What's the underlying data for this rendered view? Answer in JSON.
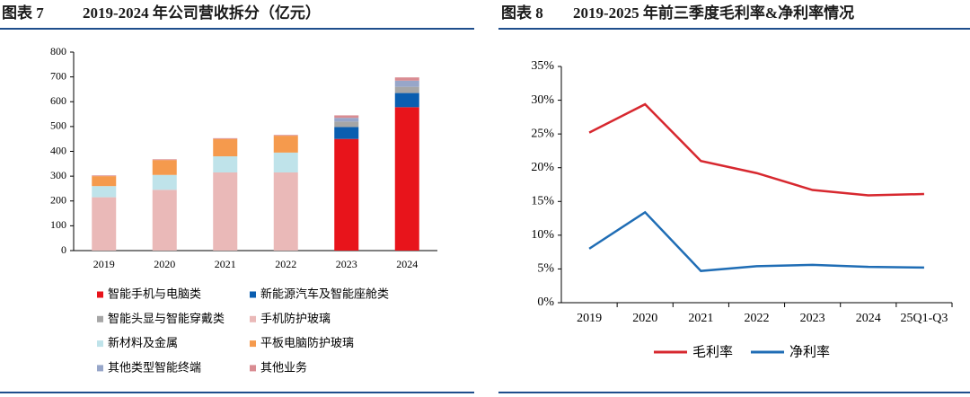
{
  "chart_data": [
    {
      "type": "bar",
      "stacked": true,
      "figure_label": "图表 7",
      "title": "2019-2024 年公司营收拆分（亿元）",
      "categories": [
        "2019",
        "2020",
        "2021",
        "2022",
        "2023",
        "2024"
      ],
      "ylim": [
        0,
        800
      ],
      "yticks": [
        0,
        100,
        200,
        300,
        400,
        500,
        600,
        700,
        800
      ],
      "series": [
        {
          "name": "智能手机与电脑类",
          "color": "#e8141b",
          "values": [
            0,
            0,
            0,
            0,
            450,
            578
          ]
        },
        {
          "name": "新能源汽车及智能座舱类",
          "color": "#0a5eb0",
          "values": [
            0,
            0,
            0,
            0,
            48,
            57
          ]
        },
        {
          "name": "智能头显与智能穿戴类",
          "color": "#a6a6a6",
          "values": [
            0,
            0,
            0,
            0,
            22,
            25
          ]
        },
        {
          "name": "手机防护玻璃",
          "color": "#eab9b8",
          "values": [
            215,
            245,
            315,
            315,
            0,
            0
          ]
        },
        {
          "name": "新材料及金属",
          "color": "#bfe3ea",
          "values": [
            45,
            60,
            65,
            80,
            0,
            0
          ]
        },
        {
          "name": "平板电脑防护玻璃",
          "color": "#f59a4d",
          "values": [
            40,
            60,
            70,
            68,
            0,
            0
          ]
        },
        {
          "name": "其他类型智能终端",
          "color": "#97a6c9",
          "values": [
            0,
            0,
            0,
            0,
            15,
            25
          ]
        },
        {
          "name": "其他业务",
          "color": "#d98c92",
          "values": [
            3,
            3,
            3,
            3,
            10,
            13
          ]
        }
      ]
    },
    {
      "type": "line",
      "figure_label": "图表 8",
      "title": "2019-2025 年前三季度毛利率&净利率情况",
      "categories": [
        "2019",
        "2020",
        "2021",
        "2022",
        "2023",
        "2024",
        "25Q1-Q3"
      ],
      "ylim": [
        0,
        35
      ],
      "yticks": [
        {
          "value": 0,
          "label": "0%"
        },
        {
          "value": 5,
          "label": "5%"
        },
        {
          "value": 10,
          "label": "10%"
        },
        {
          "value": 15,
          "label": "15%"
        },
        {
          "value": 20,
          "label": "20%"
        },
        {
          "value": 25,
          "label": "25%"
        },
        {
          "value": 30,
          "label": "30%"
        },
        {
          "value": 35,
          "label": "35%"
        }
      ],
      "series": [
        {
          "name": "毛利率",
          "color": "#d7282f",
          "values": [
            25.2,
            29.4,
            21.0,
            19.2,
            16.7,
            15.9,
            16.1
          ]
        },
        {
          "name": "净利率",
          "color": "#1f6db5",
          "values": [
            8.0,
            13.4,
            4.7,
            5.4,
            5.6,
            5.3,
            5.2
          ]
        }
      ]
    }
  ]
}
